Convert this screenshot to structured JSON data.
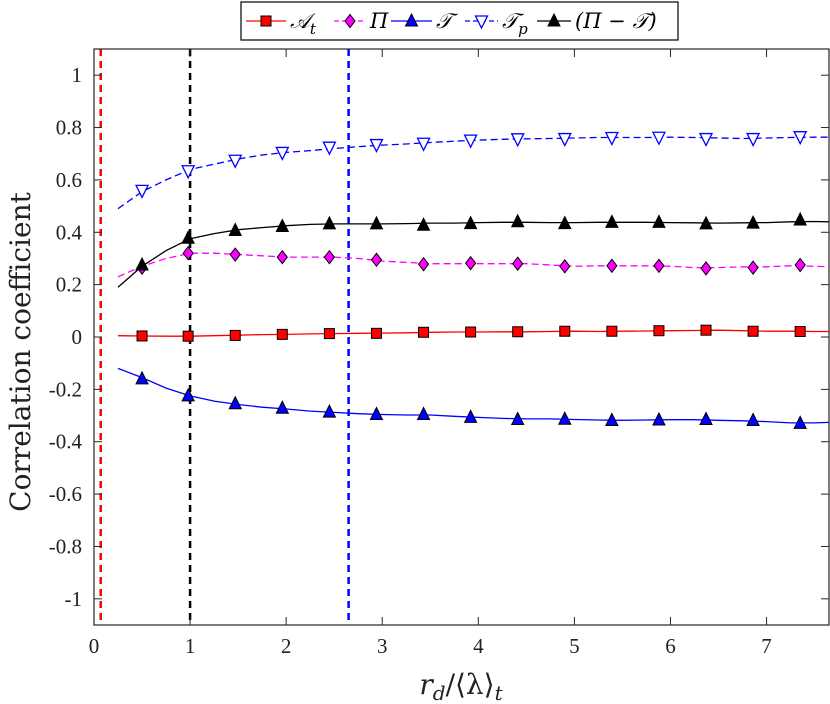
{
  "chart_data": {
    "type": "line",
    "title": "",
    "xlabel": "r_d/⟨λ⟩_t",
    "ylabel": "Correlation coefficient",
    "xlim": [
      0,
      7.65
    ],
    "ylim": [
      -1.1,
      1.1
    ],
    "x_ticks": [
      0,
      1,
      2,
      3,
      4,
      5,
      6,
      7
    ],
    "y_ticks": [
      -1,
      -0.8,
      -0.6,
      -0.4,
      -0.2,
      0,
      0.2,
      0.4,
      0.6,
      0.8,
      1
    ],
    "y_tick_labels": [
      "-1",
      "-0.8",
      "-0.6",
      "-0.4",
      "-0.2",
      "0",
      "0.2",
      "0.4",
      "0.6",
      "0.8",
      "1"
    ],
    "x_tick_labels": [
      "0",
      "1",
      "2",
      "3",
      "4",
      "5",
      "6",
      "7"
    ],
    "grid": false,
    "legend_position": "top",
    "vertical_lines": [
      {
        "x": 0.07,
        "color": "#ff0000"
      },
      {
        "x": 1.0,
        "color": "#000000"
      },
      {
        "x": 2.65,
        "color": "#0000ff"
      }
    ],
    "series": [
      {
        "name": "A_t",
        "color": "#ff0000",
        "line_style": "solid",
        "marker": "square",
        "marker_fill": "#ff0000",
        "x": [
          0.25,
          0.5,
          0.75,
          1.0,
          1.25,
          1.5,
          1.75,
          2.0,
          2.25,
          2.5,
          2.75,
          3.0,
          3.25,
          3.5,
          3.75,
          4.0,
          4.25,
          4.5,
          4.75,
          5.0,
          5.25,
          5.5,
          5.75,
          6.0,
          6.25,
          6.5,
          6.75,
          7.0,
          7.25,
          7.5,
          7.65
        ],
        "y": [
          0.005,
          0.004,
          0.003,
          0.003,
          0.005,
          0.007,
          0.009,
          0.01,
          0.012,
          0.013,
          0.014,
          0.015,
          0.016,
          0.018,
          0.019,
          0.019,
          0.02,
          0.02,
          0.021,
          0.022,
          0.021,
          0.022,
          0.023,
          0.024,
          0.025,
          0.026,
          0.024,
          0.022,
          0.022,
          0.021,
          0.021
        ],
        "marker_x": [
          0.5,
          0.98,
          1.47,
          1.96,
          2.45,
          2.94,
          3.43,
          3.92,
          4.41,
          4.9,
          5.39,
          5.88,
          6.37,
          6.86,
          7.35
        ],
        "marker_y": [
          0.004,
          0.003,
          0.006,
          0.01,
          0.013,
          0.014,
          0.018,
          0.019,
          0.02,
          0.022,
          0.022,
          0.024,
          0.026,
          0.022,
          0.021
        ]
      },
      {
        "name": "Π",
        "color": "#ff00ff",
        "line_style": "dashed",
        "marker": "diamond",
        "marker_fill": "#ff00ff",
        "x": [
          0.25,
          0.5,
          0.75,
          1.0,
          1.25,
          1.5,
          1.75,
          2.0,
          2.25,
          2.5,
          2.75,
          3.0,
          3.25,
          3.5,
          3.75,
          4.0,
          4.25,
          4.5,
          4.75,
          5.0,
          5.25,
          5.5,
          5.75,
          6.0,
          6.25,
          6.5,
          6.75,
          7.0,
          7.25,
          7.5,
          7.65
        ],
        "y": [
          0.23,
          0.27,
          0.3,
          0.32,
          0.32,
          0.315,
          0.31,
          0.305,
          0.305,
          0.305,
          0.3,
          0.29,
          0.285,
          0.28,
          0.28,
          0.28,
          0.28,
          0.28,
          0.275,
          0.27,
          0.272,
          0.272,
          0.272,
          0.27,
          0.265,
          0.265,
          0.268,
          0.268,
          0.272,
          0.27,
          0.268
        ],
        "marker_x": [
          0.5,
          0.98,
          1.47,
          1.96,
          2.45,
          2.94,
          3.43,
          3.92,
          4.41,
          4.9,
          5.39,
          5.88,
          6.37,
          6.86,
          7.35
        ],
        "marker_y": [
          0.265,
          0.32,
          0.315,
          0.305,
          0.305,
          0.295,
          0.278,
          0.282,
          0.28,
          0.27,
          0.272,
          0.272,
          0.262,
          0.265,
          0.275
        ]
      },
      {
        "name": "T",
        "color": "#0000ff",
        "line_style": "solid",
        "marker": "triangle-up",
        "marker_fill": "#0000ff",
        "x": [
          0.25,
          0.5,
          0.75,
          1.0,
          1.25,
          1.5,
          1.75,
          2.0,
          2.25,
          2.5,
          2.75,
          3.0,
          3.25,
          3.5,
          3.75,
          4.0,
          4.25,
          4.5,
          4.75,
          5.0,
          5.25,
          5.5,
          5.75,
          6.0,
          6.25,
          6.5,
          6.75,
          7.0,
          7.25,
          7.5,
          7.65
        ],
        "y": [
          -0.12,
          -0.155,
          -0.195,
          -0.225,
          -0.245,
          -0.258,
          -0.268,
          -0.275,
          -0.283,
          -0.288,
          -0.293,
          -0.296,
          -0.298,
          -0.298,
          -0.303,
          -0.307,
          -0.311,
          -0.313,
          -0.313,
          -0.315,
          -0.317,
          -0.318,
          -0.317,
          -0.316,
          -0.316,
          -0.318,
          -0.32,
          -0.323,
          -0.328,
          -0.328,
          -0.326
        ],
        "marker_x": [
          0.5,
          0.98,
          1.47,
          1.96,
          2.45,
          2.94,
          3.43,
          3.92,
          4.41,
          4.9,
          5.39,
          5.88,
          6.37,
          6.86,
          7.35
        ],
        "marker_y": [
          -0.16,
          -0.225,
          -0.255,
          -0.272,
          -0.287,
          -0.296,
          -0.296,
          -0.307,
          -0.315,
          -0.314,
          -0.319,
          -0.317,
          -0.315,
          -0.319,
          -0.33
        ]
      },
      {
        "name": "T_p",
        "color": "#0000ff",
        "line_style": "dashed",
        "marker": "triangle-down",
        "marker_fill": "none",
        "x": [
          0.25,
          0.5,
          0.75,
          1.0,
          1.25,
          1.5,
          1.75,
          2.0,
          2.25,
          2.5,
          2.75,
          3.0,
          3.25,
          3.5,
          3.75,
          4.0,
          4.25,
          4.5,
          4.75,
          5.0,
          5.25,
          5.5,
          5.75,
          6.0,
          6.25,
          6.5,
          6.75,
          7.0,
          7.25,
          7.5,
          7.65
        ],
        "y": [
          0.49,
          0.555,
          0.6,
          0.64,
          0.66,
          0.68,
          0.695,
          0.705,
          0.712,
          0.72,
          0.727,
          0.733,
          0.737,
          0.743,
          0.748,
          0.752,
          0.755,
          0.757,
          0.758,
          0.76,
          0.762,
          0.762,
          0.762,
          0.763,
          0.762,
          0.76,
          0.758,
          0.76,
          0.762,
          0.763,
          0.763
        ],
        "marker_x": [
          0.5,
          0.98,
          1.47,
          1.96,
          2.45,
          2.94,
          3.43,
          3.92,
          4.41,
          4.9,
          5.39,
          5.88,
          6.37,
          6.86,
          7.35
        ],
        "marker_y": [
          0.56,
          0.635,
          0.675,
          0.705,
          0.725,
          0.735,
          0.74,
          0.752,
          0.757,
          0.758,
          0.762,
          0.763,
          0.758,
          0.758,
          0.765
        ]
      },
      {
        "name": "(Π − T)",
        "color": "#000000",
        "line_style": "solid",
        "marker": "triangle-up",
        "marker_fill": "#000000",
        "x": [
          0.25,
          0.5,
          0.75,
          1.0,
          1.25,
          1.5,
          1.75,
          2.0,
          2.25,
          2.5,
          2.75,
          3.0,
          3.25,
          3.5,
          3.75,
          4.0,
          4.25,
          4.5,
          4.75,
          5.0,
          5.25,
          5.5,
          5.75,
          6.0,
          6.25,
          6.5,
          6.75,
          7.0,
          7.25,
          7.5,
          7.65
        ],
        "y": [
          0.19,
          0.27,
          0.33,
          0.375,
          0.395,
          0.41,
          0.418,
          0.425,
          0.43,
          0.432,
          0.432,
          0.432,
          0.433,
          0.435,
          0.435,
          0.437,
          0.438,
          0.438,
          0.437,
          0.437,
          0.438,
          0.438,
          0.438,
          0.437,
          0.436,
          0.435,
          0.436,
          0.437,
          0.44,
          0.441,
          0.44
        ],
        "marker_x": [
          0.5,
          0.98,
          1.47,
          1.96,
          2.45,
          2.94,
          3.43,
          3.92,
          4.41,
          4.9,
          5.39,
          5.88,
          6.37,
          6.86,
          7.35
        ],
        "marker_y": [
          0.275,
          0.377,
          0.407,
          0.422,
          0.432,
          0.432,
          0.427,
          0.433,
          0.44,
          0.433,
          0.438,
          0.438,
          0.432,
          0.435,
          0.447
        ]
      }
    ]
  },
  "legend": {
    "items": [
      {
        "label_main": "𝒜",
        "label_sub": "t",
        "series_index": 0
      },
      {
        "label_main": "Π",
        "label_sub": "",
        "series_index": 1
      },
      {
        "label_main": "𝒯",
        "label_sub": "",
        "series_index": 2
      },
      {
        "label_main": "𝒯",
        "label_sub": "p",
        "series_index": 3
      },
      {
        "label_main": "(Π − 𝒯)",
        "label_sub": "",
        "series_index": 4
      }
    ]
  },
  "axes": {
    "ylabel_text": "Correlation coefficient",
    "xlabel_main": "r",
    "xlabel_sub1": "d",
    "xlabel_slash": "/⟨λ⟩",
    "xlabel_sub2": "t"
  }
}
